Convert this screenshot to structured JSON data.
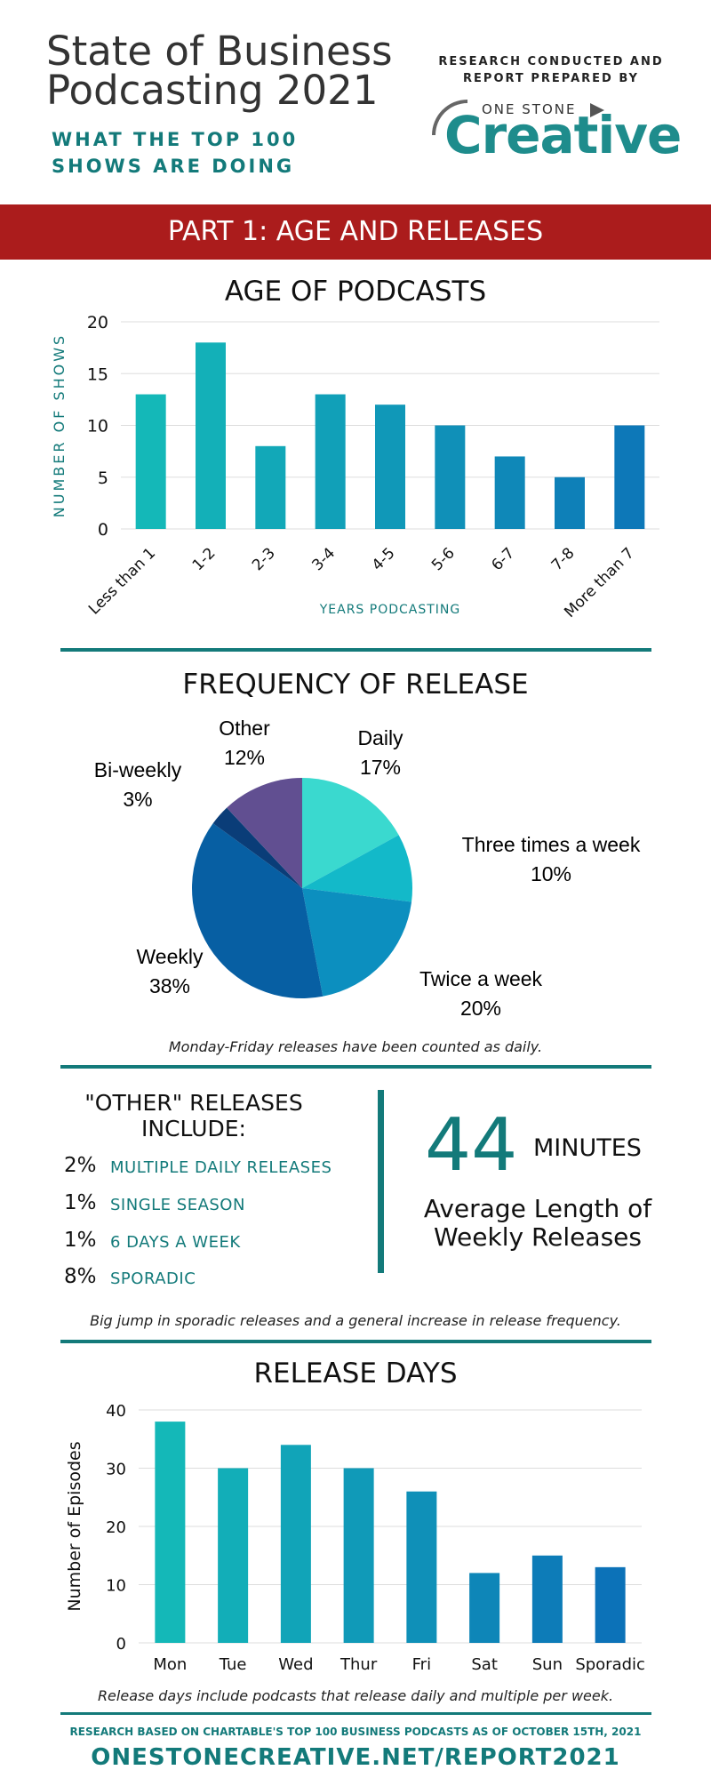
{
  "header": {
    "title_line1": "State of Business",
    "title_line2": "Podcasting 2021",
    "subtitle_line1": "WHAT THE TOP 100",
    "subtitle_line2": "SHOWS ARE DOING",
    "research_line1": "RESEARCH CONDUCTED AND",
    "research_line2": "REPORT PREPARED BY",
    "logo_small": "ONE STONE",
    "logo_big": "Creative"
  },
  "banner": {
    "text": "PART 1: AGE AND RELEASES"
  },
  "colors": {
    "teal": "#137a7a",
    "red": "#ab1c1c"
  },
  "chart_data": [
    {
      "type": "bar",
      "title": "AGE OF PODCASTS",
      "xlabel": "YEARS PODCASTING",
      "ylabel": "NUMBER OF SHOWS",
      "categories": [
        "Less than 1",
        "1-2",
        "2-3",
        "3-4",
        "4-5",
        "5-6",
        "6-7",
        "7-8",
        "More than 7"
      ],
      "values": [
        13,
        18,
        8,
        13,
        12,
        10,
        7,
        5,
        10
      ],
      "ylim": [
        0,
        20
      ],
      "yticks": [
        0,
        5,
        10,
        15,
        20
      ],
      "grid": true,
      "colors": [
        "#14b8b8",
        "#13b0b8",
        "#12a8b8",
        "#11a0b8",
        "#1098b8",
        "#1090b8",
        "#0f88b8",
        "#0e80b8",
        "#0d78b8"
      ]
    },
    {
      "type": "pie",
      "title": "FREQUENCY OF  RELEASE",
      "slices": [
        {
          "label": "Daily",
          "value": 17,
          "display": "17%",
          "color": "#3ad9cf"
        },
        {
          "label": "Three times a week",
          "value": 10,
          "display": "10%",
          "color": "#13b9c9"
        },
        {
          "label": "Twice a week",
          "value": 20,
          "display": "20%",
          "color": "#0c8fbf"
        },
        {
          "label": "Weekly",
          "value": 38,
          "display": "38%",
          "color": "#075fa3"
        },
        {
          "label": "Bi-weekly",
          "value": 3,
          "display": "3%",
          "color": "#0a3d78"
        },
        {
          "label": "Other",
          "value": 12,
          "display": "12%",
          "color": "#614f91"
        }
      ]
    },
    {
      "type": "bar",
      "title": "RELEASE DAYS",
      "xlabel": "",
      "ylabel": "Number of Episodes",
      "categories": [
        "Mon",
        "Tue",
        "Wed",
        "Thur",
        "Fri",
        "Sat",
        "Sun",
        "Sporadic"
      ],
      "values": [
        38,
        30,
        34,
        30,
        26,
        12,
        15,
        13
      ],
      "ylim": [
        0,
        40
      ],
      "yticks": [
        0,
        10,
        20,
        30,
        40
      ],
      "grid": true,
      "colors": [
        "#14b8b8",
        "#12aeb8",
        "#11a4b8",
        "#109ab8",
        "#0f90b8",
        "#0e86b8",
        "#0d7cb8",
        "#0c72b8"
      ]
    }
  ],
  "notes": {
    "frequency": "Monday-Friday releases have been counted as daily.",
    "other": "Big jump in sporadic releases and a general increase in release frequency.",
    "release_days": "Release days include podcasts that release daily and multiple per week."
  },
  "other_releases": {
    "title_line1": "\"OTHER\" RELEASES",
    "title_line2": "INCLUDE:",
    "items": [
      {
        "pct": "2%",
        "label": "MULTIPLE DAILY RELEASES"
      },
      {
        "pct": "1%",
        "label": "SINGLE SEASON"
      },
      {
        "pct": "1%",
        "label": "6 DAYS A WEEK"
      },
      {
        "pct": "8%",
        "label": "SPORADIC"
      }
    ]
  },
  "weekly_length": {
    "number": "44",
    "unit": "MINUTES",
    "label_line1": "Average Length of",
    "label_line2": "Weekly Releases"
  },
  "footer": {
    "small": "RESEARCH BASED ON CHARTABLE'S TOP 100 BUSINESS PODCASTS AS OF OCTOBER 15TH, 2021",
    "url": "ONESTONECREATIVE.NET/REPORT2021"
  }
}
